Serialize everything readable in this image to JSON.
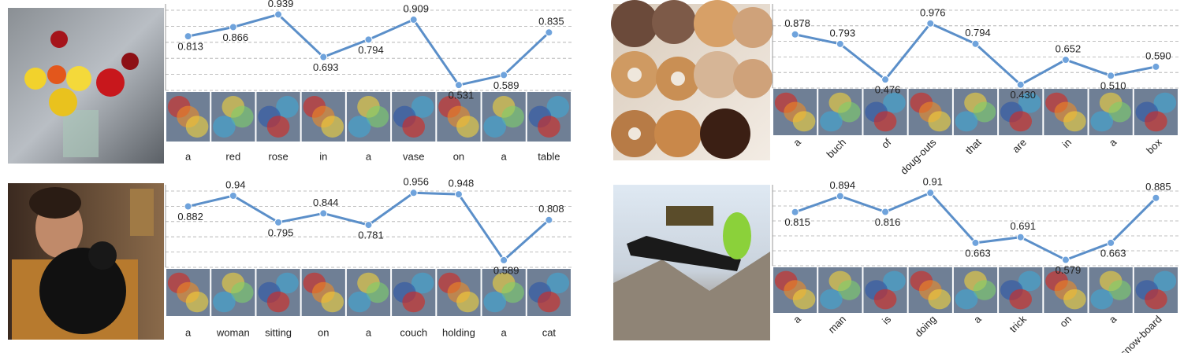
{
  "chart_data": [
    {
      "type": "line",
      "categories": [
        "a",
        "red",
        "rose",
        "in",
        "a",
        "vase",
        "on",
        "a",
        "table"
      ],
      "values": [
        0.813,
        0.866,
        0.939,
        0.693,
        0.794,
        0.909,
        0.531,
        0.589,
        0.835
      ],
      "value_labels": [
        "0.813",
        "0.866",
        "0.939",
        "0.693",
        "0.794",
        "0.909",
        "0.531",
        "0.589",
        "0.835"
      ],
      "color": "#5b8fc9",
      "ylim": [
        0.5,
        1.0
      ],
      "grid": true
    },
    {
      "type": "line",
      "categories": [
        "a",
        "woman",
        "sitting",
        "on",
        "a",
        "couch",
        "holding",
        "a",
        "cat"
      ],
      "values": [
        0.882,
        0.94,
        0.795,
        0.844,
        0.781,
        0.956,
        0.948,
        0.589,
        0.808
      ],
      "value_labels": [
        "0.882",
        "0.94",
        "0.795",
        "0.844",
        "0.781",
        "0.956",
        "0.948",
        "0.589",
        "0.808"
      ],
      "color": "#5b8fc9",
      "ylim": [
        0.55,
        1.0
      ],
      "grid": true
    },
    {
      "type": "line",
      "categories": [
        "a",
        "buch",
        "of",
        "doug-outs",
        "that",
        "are",
        "in",
        "a",
        "box"
      ],
      "values": [
        0.878,
        0.793,
        0.476,
        0.976,
        0.794,
        0.43,
        0.652,
        0.51,
        0.59
      ],
      "value_labels": [
        "0.878",
        "0.793",
        "0.476",
        "0.976",
        "0.794",
        "0.430",
        "0.652",
        "0.510",
        "0.590"
      ],
      "color": "#5b8fc9",
      "ylim": [
        0.4,
        1.15
      ],
      "grid": true
    },
    {
      "type": "line",
      "categories": [
        "a",
        "man",
        "is",
        "doing",
        "a",
        "trick",
        "on",
        "a",
        "snow-board"
      ],
      "values": [
        0.815,
        0.894,
        0.816,
        0.91,
        0.663,
        0.691,
        0.579,
        0.663,
        0.885
      ],
      "value_labels": [
        "0.815",
        "0.894",
        "0.816",
        "0.91",
        "0.663",
        "0.691",
        "0.579",
        "0.663",
        "0.885"
      ],
      "color": "#5b8fc9",
      "ylim": [
        0.55,
        0.95
      ],
      "grid": true
    }
  ]
}
